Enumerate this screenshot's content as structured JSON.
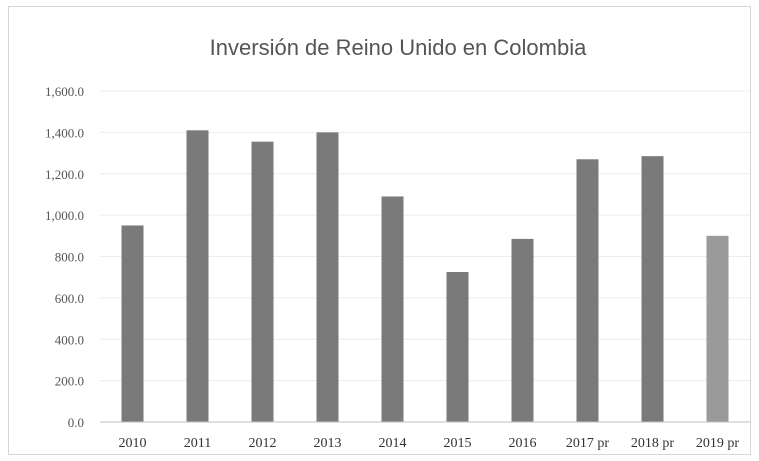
{
  "chart_data": {
    "type": "bar",
    "title": "Inversión de Reino Unido en Colombia",
    "xlabel": "",
    "ylabel": "",
    "categories": [
      "2010",
      "2011",
      "2012",
      "2013",
      "2014",
      "2015",
      "2016",
      "2017 pr",
      "2018 pr",
      "2019 pr"
    ],
    "values": [
      950,
      1410,
      1355,
      1400,
      1090,
      725,
      885,
      1270,
      1285,
      900
    ],
    "ylim": [
      0,
      1600
    ],
    "yticks": [
      "0.0",
      "200.0",
      "400.0",
      "600.0",
      "800.0",
      "1,000.0",
      "1,200.0",
      "1,400.0",
      "1,600.0"
    ],
    "grid": true,
    "legend": "none",
    "colors": {
      "bar": "#7a7a7a",
      "bar_last": "#9a9a9a",
      "axis": "#bfbfbf"
    }
  }
}
